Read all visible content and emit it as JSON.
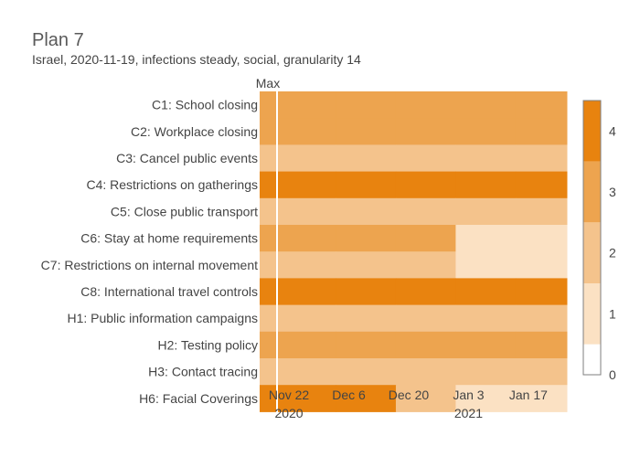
{
  "colors": {
    "level0": "#ffffff",
    "level1": "#fbe1c3",
    "level2": "#f4c38c",
    "level3": "#eda44f",
    "level4": "#e8830f",
    "separator": "#ffffff",
    "colorbar_border": "#7f7f7f"
  },
  "chart_data": {
    "type": "heatmap",
    "title": "Plan 7",
    "subtitle": "Israel, 2020-11-19, infections steady, social, granularity 14",
    "max_column_label": "Max",
    "rows": [
      "C1: School closing",
      "C2: Workplace closing",
      "C3: Cancel public events",
      "C4: Restrictions on gatherings",
      "C5: Close public transport",
      "C6: Stay at home requirements",
      "C7: Restrictions on internal movement",
      "C8: International travel controls",
      "H1: Public information campaigns",
      "H2: Testing policy",
      "H3: Contact tracing",
      "H6: Facial Coverings"
    ],
    "max_values": [
      3,
      3,
      2,
      4,
      2,
      3,
      2,
      4,
      2,
      3,
      2,
      4
    ],
    "period_starts": [
      "2020-11-19",
      "2020-12-03",
      "2020-12-17",
      "2020-12-31",
      "2021-01-14"
    ],
    "values": [
      [
        3,
        3,
        3,
        3,
        3
      ],
      [
        3,
        3,
        3,
        3,
        3
      ],
      [
        2,
        2,
        2,
        2,
        2
      ],
      [
        4,
        4,
        4,
        4,
        4
      ],
      [
        2,
        2,
        2,
        2,
        2
      ],
      [
        3,
        3,
        3,
        1,
        1
      ],
      [
        2,
        2,
        2,
        1,
        1
      ],
      [
        4,
        4,
        4,
        4,
        4
      ],
      [
        2,
        2,
        2,
        2,
        2
      ],
      [
        3,
        3,
        3,
        3,
        3
      ],
      [
        2,
        2,
        2,
        2,
        2
      ],
      [
        4,
        4,
        2,
        1,
        1
      ]
    ],
    "x_range": [
      "2020-11-19",
      "2021-01-26"
    ],
    "x_ticks": [
      {
        "date": "2020-11-22",
        "label": "Nov 22",
        "sublabel": "2020"
      },
      {
        "date": "2020-12-06",
        "label": "Dec 6",
        "sublabel": ""
      },
      {
        "date": "2020-12-20",
        "label": "Dec 20",
        "sublabel": ""
      },
      {
        "date": "2021-01-03",
        "label": "Jan 3",
        "sublabel": "2021"
      },
      {
        "date": "2021-01-17",
        "label": "Jan 17",
        "sublabel": ""
      }
    ],
    "colorbar": {
      "range": [
        0,
        4.5
      ],
      "ticks": [
        0,
        1,
        2,
        3,
        4
      ],
      "tick_labels": [
        "0",
        "1",
        "2",
        "3",
        "4"
      ]
    }
  }
}
